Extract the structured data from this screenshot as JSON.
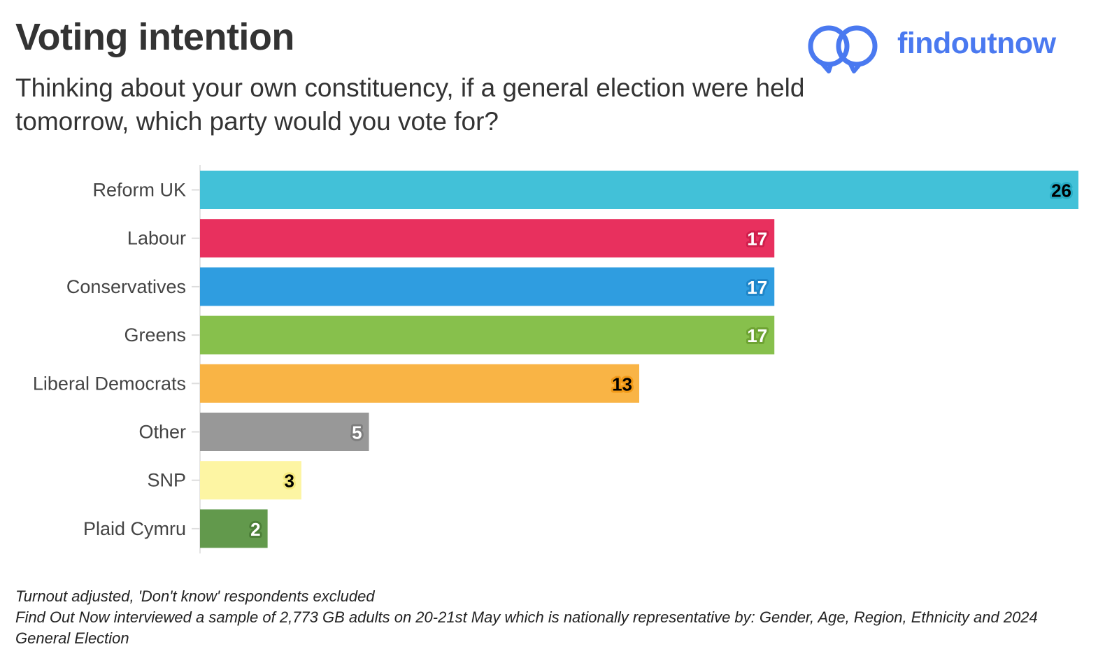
{
  "header": {
    "title": "Voting intention",
    "subtitle": "Thinking about your own constituency, if a general election were held tomorrow, which party would you vote for?"
  },
  "brand": {
    "name": "findoutnow",
    "icon": "interlocking-rings-logo-icon",
    "color": "#4a79f0"
  },
  "chart_data": {
    "type": "bar",
    "orientation": "horizontal",
    "categories": [
      "Reform UK",
      "Labour",
      "Conservatives",
      "Greens",
      "Liberal Democrats",
      "Other",
      "SNP",
      "Plaid Cymru"
    ],
    "values": [
      26,
      17,
      17,
      17,
      13,
      5,
      3,
      2
    ],
    "colors": [
      "#42c1d8",
      "#e8305e",
      "#2f9de0",
      "#87c04c",
      "#f9b445",
      "#989898",
      "#fdf5a3",
      "#62994c"
    ],
    "label_text_colors": [
      "#000000",
      "#ffffff",
      "#ffffff",
      "#ffffff",
      "#000000",
      "#ffffff",
      "#000000",
      "#ffffff"
    ],
    "label_halo_colors": [
      "#27adc6",
      "#cf1f4c",
      "#1f86c9",
      "#6ea333",
      "#f29a18",
      "#7d7d7d",
      "#f6ea7e",
      "#4c7f38"
    ],
    "xlim": [
      0,
      26
    ],
    "grid": false,
    "legend": "none"
  },
  "footnotes": {
    "line1": "Turnout adjusted, 'Don't know' respondents excluded",
    "line2": "Find Out Now interviewed a sample of 2,773 GB adults on 20-21st May which is nationally representative by: Gender, Age, Region, Ethnicity and 2024 General Election"
  }
}
